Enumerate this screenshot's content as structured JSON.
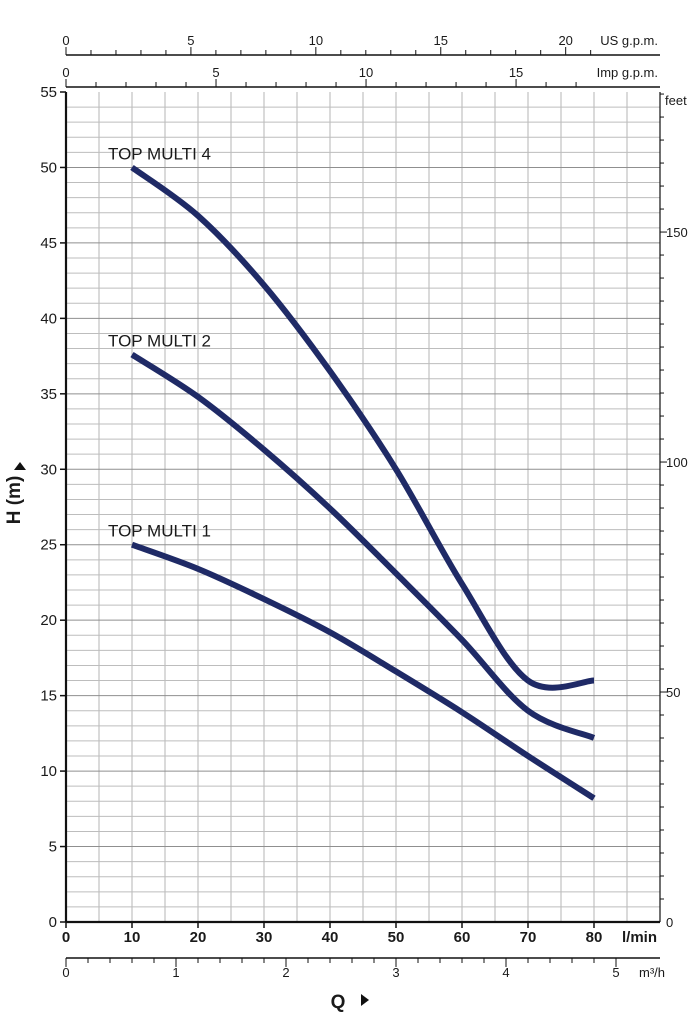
{
  "chart_data": {
    "type": "line",
    "title": "",
    "xlabel": "Q",
    "ylabel": "H (m)",
    "x_unit": "l/min",
    "xlim": [
      0,
      90
    ],
    "ylim": [
      0,
      55
    ],
    "x_ticks": [
      "0",
      "10",
      "20",
      "30",
      "40",
      "50",
      "60",
      "70",
      "80"
    ],
    "y_ticks": [
      "0",
      "5",
      "10",
      "15",
      "20",
      "25",
      "30",
      "35",
      "40",
      "45",
      "50",
      "55"
    ],
    "secondary_axes": {
      "right": {
        "unit": "feet",
        "ticks": [
          "0",
          "50",
          "100",
          "150"
        ]
      },
      "top_us": {
        "unit": "US g.p.m.",
        "ticks": [
          "0",
          "5",
          "10",
          "15",
          "20"
        ]
      },
      "top_imp": {
        "unit": "Imp g.p.m.",
        "ticks": [
          "0",
          "5",
          "10",
          "15"
        ]
      },
      "bottom_m3h": {
        "unit": "m³/h",
        "ticks": [
          "0",
          "1",
          "2",
          "3",
          "4",
          "5"
        ]
      }
    },
    "grid": true,
    "series": [
      {
        "name": "TOP MULTI 4",
        "color": "#1f2a66",
        "x": [
          10,
          20,
          30,
          40,
          50,
          60,
          70,
          80
        ],
        "y": [
          50,
          46.8,
          42.2,
          36.5,
          30,
          22.4,
          16,
          16
        ]
      },
      {
        "name": "TOP MULTI 2",
        "color": "#1f2a66",
        "x": [
          10,
          20,
          30,
          40,
          50,
          60,
          70,
          80
        ],
        "y": [
          37.6,
          34.8,
          31.3,
          27.4,
          23.1,
          18.7,
          14,
          12.2
        ]
      },
      {
        "name": "TOP MULTI 1",
        "color": "#1f2a66",
        "x": [
          10,
          20,
          30,
          40,
          50,
          60,
          70,
          80
        ],
        "y": [
          25,
          23.4,
          21.4,
          19.2,
          16.6,
          13.9,
          11,
          8.2
        ]
      }
    ]
  }
}
